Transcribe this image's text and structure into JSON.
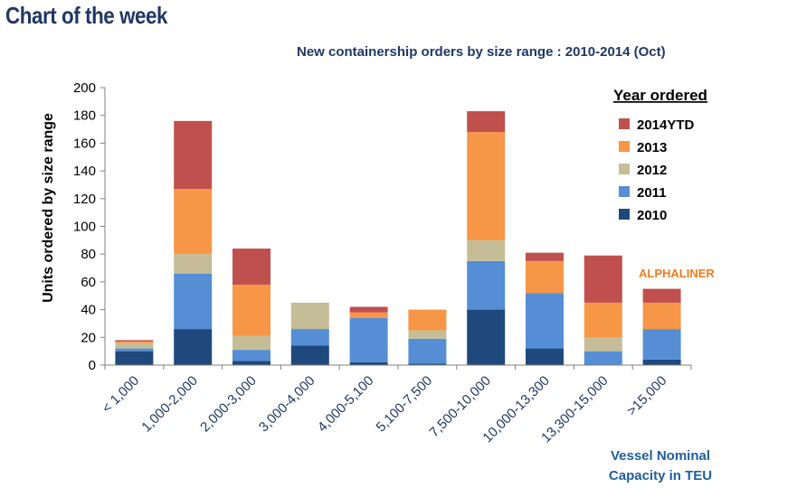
{
  "header": {
    "title": "Chart of the week"
  },
  "chart_data": {
    "type": "bar",
    "stacked": true,
    "title": "New containership orders by size range : 2010-2014 (Oct)",
    "ylabel": "Units ordered by size range",
    "xlabel_line1": "Vessel Nominal",
    "xlabel_line2": "Capacity in TEU",
    "ylim": [
      0,
      200
    ],
    "yticks": [
      0,
      20,
      40,
      60,
      80,
      100,
      120,
      140,
      160,
      180,
      200
    ],
    "categories": [
      "< 1,000",
      "1,000-2,000",
      "2,000-3,000",
      "3,000-4,000",
      "4,000-5,100",
      "5,100-7,500",
      "7,500-10,000",
      "10,000-13,300",
      "13,300-15,000",
      ">15,000"
    ],
    "legend_title": "Year ordered",
    "series": [
      {
        "name": "2010",
        "color": "#1f497d",
        "values": [
          10,
          26,
          3,
          14,
          2,
          1,
          40,
          12,
          0,
          4
        ]
      },
      {
        "name": "2011",
        "color": "#558ed5",
        "values": [
          2,
          40,
          8,
          12,
          32,
          18,
          35,
          40,
          10,
          22
        ]
      },
      {
        "name": "2012",
        "color": "#c4bd97",
        "values": [
          4,
          14,
          10,
          19,
          0,
          6,
          15,
          0,
          10,
          0
        ]
      },
      {
        "name": "2013",
        "color": "#f79646",
        "values": [
          1,
          47,
          37,
          0,
          4,
          15,
          78,
          23,
          25,
          19
        ]
      },
      {
        "name": "2014YTD",
        "color": "#c0504d",
        "values": [
          1,
          49,
          26,
          0,
          4,
          0,
          15,
          6,
          34,
          10
        ]
      }
    ],
    "annotation": "ALPHALINER"
  }
}
